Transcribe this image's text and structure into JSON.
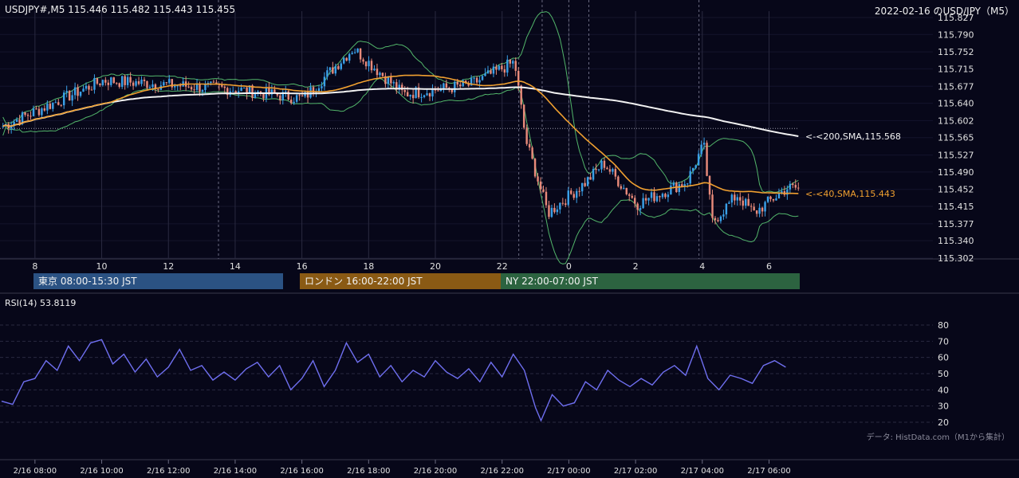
{
  "header": {
    "ohlc": "USDJPY#,M5 115.446 115.482 115.443 115.455",
    "title": "2022-02-16 のUSD/JPY（M5）"
  },
  "sessions": [
    {
      "label": "東京 08:00-15:30 JST",
      "color": "#2b5283"
    },
    {
      "label": "ロンドン 16:00-22:00 JST",
      "color": "#8a5a14"
    },
    {
      "label": "NY 22:00-07:00 JST",
      "color": "#2c6340"
    }
  ],
  "credit": "データ: HistData.com（M1から集計）",
  "chart_data": [
    {
      "type": "candlestick",
      "price_ticks": [
        "115.827",
        "115.790",
        "115.752",
        "115.715",
        "115.677",
        "115.640",
        "115.602",
        "115.565",
        "115.527",
        "115.490",
        "115.452",
        "115.415",
        "115.377",
        "115.340",
        "115.302"
      ],
      "ylim": [
        115.302,
        115.827
      ],
      "hour_ticks": [
        "8",
        "10",
        "12",
        "14",
        "16",
        "18",
        "20",
        "22",
        "0",
        "2",
        "4",
        "6"
      ],
      "series": [
        {
          "name": "<200,SMA,115.568",
          "label": "<-<200,SMA,115.568",
          "value": 115.568,
          "color": "#f2f2f2"
        },
        {
          "name": "<40,SMA,115.443",
          "label": "<-<40,SMA,115.443",
          "value": 115.443,
          "color": "#f0a030"
        }
      ],
      "reference_line": 115.585,
      "key_points": [
        {
          "t": "07:00",
          "price": 115.59
        },
        {
          "t": "10:00",
          "price": 115.69
        },
        {
          "t": "14:00",
          "price": 115.67
        },
        {
          "t": "16:00",
          "price": 115.65
        },
        {
          "t": "17:30",
          "price": 115.76
        },
        {
          "t": "19:00",
          "price": 115.66
        },
        {
          "t": "21:00",
          "price": 115.68
        },
        {
          "t": "22:20",
          "price": 115.73
        },
        {
          "t": "22:40",
          "price": 115.56
        },
        {
          "t": "23:20",
          "price": 115.4
        },
        {
          "t": "00:30",
          "price": 115.47
        },
        {
          "t": "01:00",
          "price": 115.51
        },
        {
          "t": "02:00",
          "price": 115.42
        },
        {
          "t": "03:30",
          "price": 115.47
        },
        {
          "t": "04:00",
          "price": 115.55
        },
        {
          "t": "04:15",
          "price": 115.38
        },
        {
          "t": "05:00",
          "price": 115.44
        },
        {
          "t": "05:30",
          "price": 115.4
        },
        {
          "t": "06:30",
          "price": 115.455
        }
      ],
      "colors": {
        "bull": "#3aa0e8",
        "bear": "#e88a7a",
        "bands": "#52b56a"
      }
    },
    {
      "type": "line",
      "title": "RSI(14) 53.8119",
      "y_ticks": [
        "80",
        "70",
        "60",
        "50",
        "40",
        "30",
        "20"
      ],
      "ylim": [
        20,
        80
      ],
      "x_ticks": [
        "2/16 08:00",
        "2/16 10:00",
        "2/16 12:00",
        "2/16 14:00",
        "2/16 16:00",
        "2/16 18:00",
        "2/16 20:00",
        "2/16 22:00",
        "2/17 00:00",
        "2/17 02:00",
        "2/17 04:00",
        "2/17 06:00"
      ],
      "series": [
        {
          "name": "RSI(14)",
          "color": "#6f6ff0",
          "points": [
            {
              "t": "07:00",
              "v": 33
            },
            {
              "t": "07:20",
              "v": 31
            },
            {
              "t": "07:40",
              "v": 45
            },
            {
              "t": "08:00",
              "v": 47
            },
            {
              "t": "08:20",
              "v": 58
            },
            {
              "t": "08:40",
              "v": 52
            },
            {
              "t": "09:00",
              "v": 67
            },
            {
              "t": "09:20",
              "v": 58
            },
            {
              "t": "09:40",
              "v": 69
            },
            {
              "t": "10:00",
              "v": 71
            },
            {
              "t": "10:20",
              "v": 56
            },
            {
              "t": "10:40",
              "v": 62
            },
            {
              "t": "11:00",
              "v": 51
            },
            {
              "t": "11:20",
              "v": 59
            },
            {
              "t": "11:40",
              "v": 48
            },
            {
              "t": "12:00",
              "v": 54
            },
            {
              "t": "12:20",
              "v": 65
            },
            {
              "t": "12:40",
              "v": 52
            },
            {
              "t": "13:00",
              "v": 55
            },
            {
              "t": "13:20",
              "v": 46
            },
            {
              "t": "13:40",
              "v": 51
            },
            {
              "t": "14:00",
              "v": 46
            },
            {
              "t": "14:20",
              "v": 53
            },
            {
              "t": "14:40",
              "v": 57
            },
            {
              "t": "15:00",
              "v": 48
            },
            {
              "t": "15:20",
              "v": 55
            },
            {
              "t": "15:40",
              "v": 40
            },
            {
              "t": "16:00",
              "v": 47
            },
            {
              "t": "16:20",
              "v": 58
            },
            {
              "t": "16:40",
              "v": 42
            },
            {
              "t": "17:00",
              "v": 52
            },
            {
              "t": "17:20",
              "v": 69
            },
            {
              "t": "17:40",
              "v": 57
            },
            {
              "t": "18:00",
              "v": 62
            },
            {
              "t": "18:20",
              "v": 48
            },
            {
              "t": "18:40",
              "v": 55
            },
            {
              "t": "19:00",
              "v": 45
            },
            {
              "t": "19:20",
              "v": 52
            },
            {
              "t": "19:40",
              "v": 48
            },
            {
              "t": "20:00",
              "v": 58
            },
            {
              "t": "20:20",
              "v": 51
            },
            {
              "t": "20:40",
              "v": 47
            },
            {
              "t": "21:00",
              "v": 53
            },
            {
              "t": "21:20",
              "v": 45
            },
            {
              "t": "21:40",
              "v": 57
            },
            {
              "t": "22:00",
              "v": 48
            },
            {
              "t": "22:20",
              "v": 62
            },
            {
              "t": "22:40",
              "v": 52
            },
            {
              "t": "23:00",
              "v": 29
            },
            {
              "t": "23:10",
              "v": 21
            },
            {
              "t": "23:30",
              "v": 37
            },
            {
              "t": "23:50",
              "v": 30
            },
            {
              "t": "00:10",
              "v": 32
            },
            {
              "t": "00:30",
              "v": 45
            },
            {
              "t": "00:50",
              "v": 40
            },
            {
              "t": "01:10",
              "v": 52
            },
            {
              "t": "01:30",
              "v": 46
            },
            {
              "t": "01:50",
              "v": 42
            },
            {
              "t": "02:10",
              "v": 47
            },
            {
              "t": "02:30",
              "v": 43
            },
            {
              "t": "02:50",
              "v": 51
            },
            {
              "t": "03:10",
              "v": 55
            },
            {
              "t": "03:30",
              "v": 49
            },
            {
              "t": "03:50",
              "v": 67
            },
            {
              "t": "04:10",
              "v": 47
            },
            {
              "t": "04:30",
              "v": 40
            },
            {
              "t": "04:50",
              "v": 49
            },
            {
              "t": "05:10",
              "v": 47
            },
            {
              "t": "05:30",
              "v": 44
            },
            {
              "t": "05:50",
              "v": 55
            },
            {
              "t": "06:10",
              "v": 58
            },
            {
              "t": "06:30",
              "v": 54
            }
          ]
        }
      ]
    }
  ]
}
